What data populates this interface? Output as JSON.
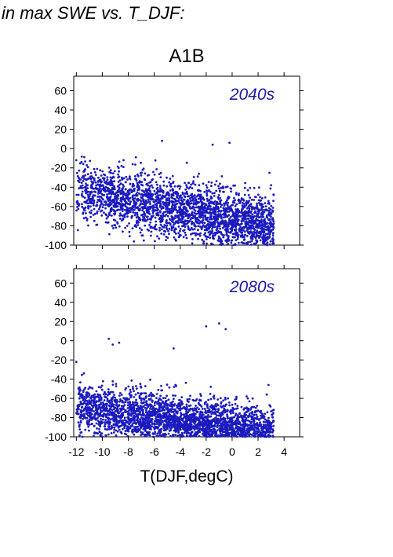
{
  "figure": {
    "title": "in max SWE vs. T_DJF:",
    "scenario": "A1B",
    "xlabel": "T(DJF,degC)",
    "point_color": "#1a1abf",
    "label_color": "#1a1aa8"
  },
  "chart_data": [
    {
      "type": "scatter",
      "annotation": "2040s",
      "xlim": [
        -12.2,
        5.2
      ],
      "ylim": [
        -100,
        75
      ],
      "xticks": [
        -12,
        -10,
        -8,
        -6,
        -4,
        -2,
        0,
        2,
        4
      ],
      "yticks": [
        60,
        40,
        20,
        0,
        -20,
        -40,
        -60,
        -80,
        -100
      ],
      "grid": false,
      "xtick_labels_shown": false,
      "cloud": {
        "n": 2600,
        "x_min": -12,
        "x_max": 3.2,
        "y_top_at_x_min": -8,
        "y_top_at_x_max": 6,
        "y_bottom": -100,
        "center_slope": -2.6,
        "center_at_x_zero": -74,
        "spread": 15,
        "seed": 7
      },
      "outliers": [
        [
          -12,
          -12
        ],
        [
          -11.6,
          -14
        ],
        [
          -9.3,
          -34
        ],
        [
          -9.6,
          -58
        ],
        [
          3.2,
          -48
        ],
        [
          3.0,
          -38
        ],
        [
          2.4,
          -98
        ],
        [
          2.7,
          -100
        ],
        [
          -1.5,
          4
        ],
        [
          -0.2,
          6
        ],
        [
          -5.4,
          8
        ]
      ]
    },
    {
      "type": "scatter",
      "annotation": "2080s",
      "xlim": [
        -12.2,
        5.2
      ],
      "ylim": [
        -100,
        75
      ],
      "xticks": [
        -12,
        -10,
        -8,
        -6,
        -4,
        -2,
        0,
        2,
        4
      ],
      "yticks": [
        60,
        40,
        20,
        0,
        -20,
        -40,
        -60,
        -80,
        -100
      ],
      "grid": false,
      "xtick_labels_shown": true,
      "cloud": {
        "n": 2600,
        "x_min": -12,
        "x_max": 3.2,
        "y_top_at_x_min": -20,
        "y_top_at_x_max": 10,
        "y_bottom": -100,
        "center_slope": -1.9,
        "center_at_x_zero": -92,
        "spread": 13,
        "seed": 19
      },
      "outliers": [
        [
          -12,
          -22
        ],
        [
          -9.5,
          2
        ],
        [
          -9.2,
          -4
        ],
        [
          -1.0,
          18
        ],
        [
          -2.0,
          15
        ],
        [
          -0.5,
          12
        ],
        [
          3.2,
          -72
        ],
        [
          2.8,
          -46
        ],
        [
          -4.5,
          -8
        ],
        [
          -8.7,
          -2
        ]
      ]
    }
  ]
}
